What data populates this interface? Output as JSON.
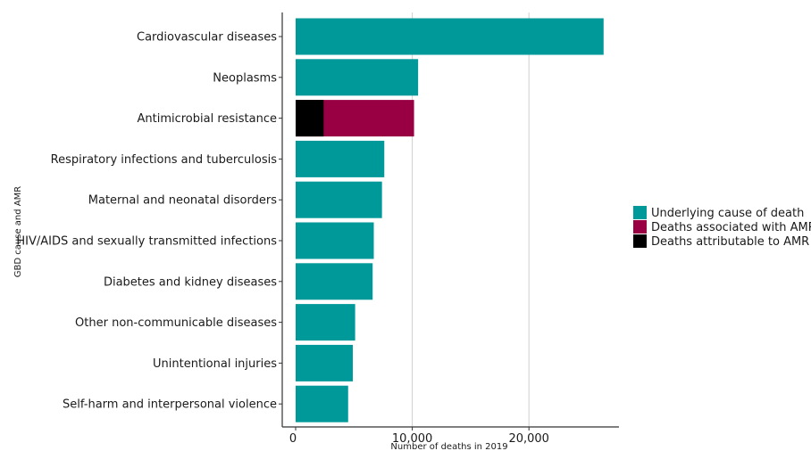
{
  "chart_data": {
    "type": "bar",
    "orientation": "horizontal",
    "stacked": true,
    "xlabel": "Number of deaths in 2019",
    "ylabel": "GBD cause and AMR",
    "xlim": [
      0,
      27500
    ],
    "x_ticks": [
      0,
      10000,
      20000
    ],
    "x_tick_labels": [
      "0",
      "10,000",
      "20,000"
    ],
    "grid": "vertical major gridlines",
    "legend_position": "right",
    "categories": [
      "Cardiovascular diseases",
      "Neoplasms",
      "Antimicrobial resistance",
      "Respiratory infections and tuberculosis",
      "Maternal and neonatal disorders",
      "HIV/AIDS and sexually transmitted infections",
      "Diabetes and kidney diseases",
      "Other non-communicable diseases",
      "Unintentional injuries",
      "Self-harm and interpersonal violence"
    ],
    "series": [
      {
        "name": "Underlying cause of death",
        "color": "#009999",
        "values": [
          26400,
          10500,
          null,
          7600,
          7400,
          6700,
          6600,
          5100,
          4900,
          4500
        ]
      },
      {
        "name": "Deaths associated with AMR",
        "color": "#990044",
        "values": [
          null,
          null,
          10150,
          null,
          null,
          null,
          null,
          null,
          null,
          null
        ]
      },
      {
        "name": "Deaths attributable to AMR",
        "color": "#000000",
        "values": [
          null,
          null,
          2400,
          null,
          null,
          null,
          null,
          null,
          null,
          null
        ]
      }
    ]
  }
}
